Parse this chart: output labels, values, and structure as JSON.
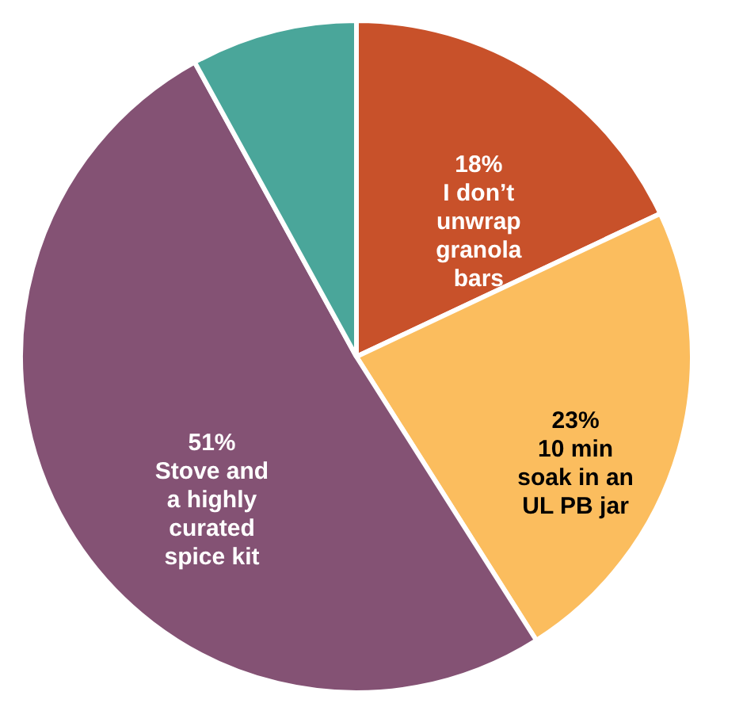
{
  "chart_data": {
    "type": "pie",
    "categories": [
      "I don’t unwrap granola bars",
      "10 min soak in an UL PB jar",
      "Stove and a highly curated spice kit",
      null
    ],
    "values": [
      18,
      23,
      51,
      8
    ],
    "value_labels": [
      "18%",
      "23%",
      "51%",
      null
    ],
    "colors": [
      "#c8512a",
      "#fbbd5e",
      "#845274",
      "#4aa69a"
    ],
    "legend": false
  }
}
